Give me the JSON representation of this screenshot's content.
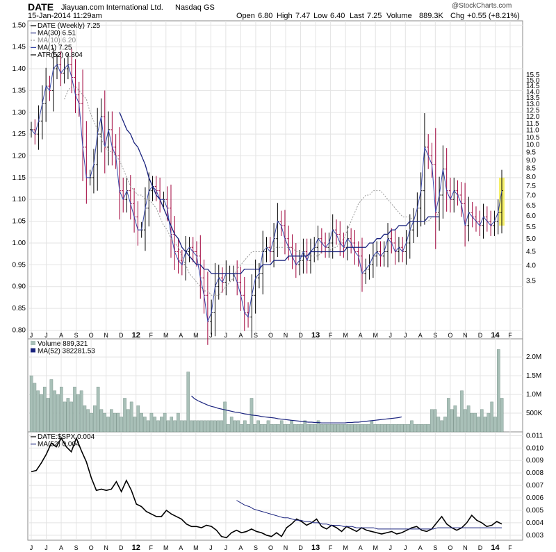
{
  "header": {
    "symbol": "DATE",
    "company": "Jiayuan.com International Ltd.",
    "exchange": "Nasdaq GS",
    "datetime": "15-Jan-2014 11:29am",
    "open_label": "Open",
    "open": "6.80",
    "high_label": "High",
    "high": "7.47",
    "low_label": "Low",
    "low": "6.40",
    "last_label": "Last",
    "last": "7.25",
    "volume_label": "Volume",
    "volume": "889.3K",
    "chg_label": "Chg",
    "chg": "+0.55 (+8.21%)",
    "watermark": "@StockCharts.com"
  },
  "colors": {
    "up_bar": "#000000",
    "down_bar": "#a0003a",
    "ma30": "#1a237e",
    "ma10": "#999999",
    "volume_bar": "#a9c0b8",
    "volume_edge": "#6e8a80",
    "highlight": "#f5ef6a",
    "grid": "#e3e3e3"
  },
  "x_axis_labels": [
    "J",
    "J",
    "A",
    "S",
    "O",
    "N",
    "D",
    "12",
    "F",
    "M",
    "A",
    "M",
    "J",
    "J",
    "A",
    "S",
    "O",
    "N",
    "D",
    "13",
    "F",
    "M",
    "A",
    "M",
    "J",
    "J",
    "A",
    "S",
    "O",
    "N",
    "D",
    "14",
    "F"
  ],
  "chart_data": [
    {
      "type": "ohlc",
      "id": "price",
      "legend": [
        "DATE (Weekly) 7.25",
        "MA(30) 6.51",
        "MA(10) 6.20",
        "MA(1) 7.25",
        "ATR(52) 0.804"
      ],
      "left_axis": {
        "min": 0.78,
        "max": 1.51,
        "ticks": [
          "0.80",
          "0.85",
          "0.90",
          "0.95",
          "1.00",
          "1.05",
          "1.10",
          "1.15",
          "1.20",
          "1.25",
          "1.30",
          "1.35",
          "1.40",
          "1.45",
          "1.50"
        ]
      },
      "right_axis": {
        "scale": "log",
        "ticks": [
          "3.5",
          "4.0",
          "4.5",
          "5.0",
          "5.5",
          "6.0",
          "6.5",
          "7.0",
          "7.5",
          "8.0",
          "8.5",
          "9.0",
          "9.5",
          "10.0",
          "10.5",
          "11.0",
          "11.5",
          "12.0",
          "12.5",
          "13.0",
          "13.5",
          "14.0",
          "14.5",
          "15.0",
          "15.5"
        ]
      },
      "close": [
        1.26,
        1.25,
        1.28,
        1.32,
        1.36,
        1.35,
        1.4,
        1.41,
        1.39,
        1.4,
        1.41,
        1.38,
        1.34,
        1.32,
        1.22,
        1.15,
        1.15,
        1.18,
        1.25,
        1.29,
        1.22,
        1.26,
        1.22,
        1.2,
        1.12,
        1.1,
        1.12,
        1.09,
        1.06,
        1.03,
        1.03,
        1.08,
        1.12,
        1.13,
        1.12,
        1.1,
        1.1,
        1.08,
        1.02,
        0.98,
        0.96,
        0.95,
        0.98,
        0.99,
        0.98,
        0.97,
        0.92,
        0.88,
        0.82,
        0.84,
        0.9,
        0.92,
        0.91,
        0.93,
        0.93,
        0.93,
        0.91,
        0.88,
        0.84,
        0.83,
        0.88,
        0.92,
        0.93,
        0.98,
        0.99,
        0.98,
        1.01,
        1.05,
        1.04,
        1.01,
        0.99,
        0.97,
        0.95,
        0.96,
        0.98,
        0.96,
        0.98,
        0.99,
        1.01,
        1.0,
        0.99,
        1.0,
        1.03,
        1.02,
        1.0,
        0.99,
        1.01,
        1.0,
        0.98,
        0.97,
        0.93,
        0.94,
        0.95,
        0.97,
        0.98,
        0.97,
        0.98,
        1.01,
        1.0,
        0.98,
        0.99,
        0.98,
        1.0,
        1.03,
        1.05,
        1.08,
        1.12,
        1.22,
        1.2,
        1.18,
        1.07,
        1.11,
        1.17,
        1.12,
        1.1,
        1.12,
        1.11,
        1.09,
        1.04,
        1.07,
        1.06,
        1.05,
        1.04,
        1.06,
        1.05,
        1.04,
        1.05,
        1.07,
        1.12
      ],
      "ma30_start_week": 24,
      "ma30": [
        1.3,
        1.28,
        1.26,
        1.25,
        1.23,
        1.22,
        1.2,
        1.18,
        1.15,
        1.13,
        1.11,
        1.1,
        1.08,
        1.06,
        1.04,
        1.02,
        1.01,
        0.99,
        0.98,
        0.97,
        0.96,
        0.95,
        0.95,
        0.94,
        0.94,
        0.93,
        0.93,
        0.93,
        0.93,
        0.93,
        0.93,
        0.93,
        0.93,
        0.93,
        0.94,
        0.94,
        0.94,
        0.94,
        0.94,
        0.95,
        0.95,
        0.95,
        0.96,
        0.96,
        0.96,
        0.96,
        0.97,
        0.97,
        0.97,
        0.97,
        0.97,
        0.97,
        0.98,
        0.98,
        0.98,
        0.98,
        0.98,
        0.98,
        0.98,
        0.98,
        0.98,
        0.98,
        0.99,
        0.99,
        0.99,
        0.99,
        0.99,
        0.99,
        1.0,
        1.0,
        1.01,
        1.01,
        1.02,
        1.02,
        1.03,
        1.03,
        1.04,
        1.04,
        1.04,
        1.05,
        1.05,
        1.05,
        1.05,
        1.05,
        1.06,
        1.06,
        1.06,
        1.06
      ],
      "ma10_start_week": 9,
      "ma10": [
        1.33,
        1.35,
        1.36,
        1.36,
        1.35,
        1.34,
        1.33,
        1.3,
        1.28,
        1.26,
        1.24,
        1.22,
        1.21,
        1.21,
        1.2,
        1.19,
        1.17,
        1.15,
        1.13,
        1.12,
        1.11,
        1.11,
        1.1,
        1.1,
        1.09,
        1.08,
        1.06,
        1.04,
        1.03,
        1.01,
        1.0,
        0.99,
        0.97,
        0.95,
        0.93,
        0.92,
        0.91,
        0.9,
        0.89,
        0.89,
        0.88,
        0.88,
        0.88,
        0.89,
        0.9,
        0.91,
        0.92,
        0.94,
        0.95,
        0.96,
        0.97,
        0.98,
        0.98,
        0.98,
        0.98,
        0.99,
        0.99,
        0.99,
        0.99,
        0.99,
        0.99,
        0.99,
        0.99,
        0.98,
        0.98,
        0.98,
        0.97,
        0.97,
        0.97,
        0.97,
        0.98,
        0.98,
        0.98,
        0.99,
        0.99,
        1.0,
        1.01,
        1.03,
        1.05,
        1.07,
        1.09,
        1.1,
        1.11,
        1.11,
        1.12,
        1.12,
        1.12,
        1.11,
        1.1,
        1.09,
        1.08,
        1.07,
        1.06,
        1.06,
        1.06,
        1.05,
        1.05,
        1.05,
        1.05,
        1.05,
        1.06,
        1.06,
        1.07
      ]
    },
    {
      "type": "bar",
      "id": "volume",
      "legend": [
        "Volume 889,321",
        "MA(52) 382281.53"
      ],
      "axis_ticks": [
        "500K",
        "1.0M",
        "1.5M",
        "2.0M"
      ],
      "y_max": 2.3,
      "values": [
        1.5,
        1.3,
        1.1,
        1.0,
        1.2,
        0.9,
        1.4,
        1.1,
        1.0,
        1.2,
        0.8,
        0.9,
        0.8,
        1.2,
        1.0,
        1.1,
        0.7,
        0.6,
        0.5,
        0.7,
        1.2,
        0.6,
        0.5,
        0.4,
        0.6,
        0.5,
        0.5,
        0.4,
        0.9,
        0.6,
        0.8,
        0.4,
        0.7,
        0.5,
        0.4,
        0.3,
        0.5,
        0.4,
        0.3,
        0.4,
        0.5,
        0.3,
        0.4,
        0.3,
        0.5,
        0.3,
        0.3,
        1.6,
        0.3,
        0.3,
        0.3,
        0.3,
        0.3,
        0.3,
        0.3,
        0.3,
        0.3,
        0.3,
        0.8,
        0.2,
        0.4,
        0.3,
        0.3,
        0.2,
        0.3,
        0.2,
        0.9,
        0.2,
        0.3,
        0.2,
        0.2,
        0.3,
        0.2,
        0.2,
        0.2,
        0.3,
        0.2,
        0.2,
        0.3,
        0.2,
        0.2,
        0.2,
        0.3,
        0.2,
        0.2,
        0.2,
        0.3,
        0.2,
        0.2,
        0.2,
        0.2,
        0.2,
        0.2,
        0.2,
        0.2,
        0.2,
        0.2,
        0.2,
        0.2,
        0.2,
        0.2,
        0.2,
        0.3,
        0.2,
        0.2,
        0.2,
        0.2,
        0.2,
        0.2,
        0.2,
        0.2,
        0.2,
        0.2,
        0.2,
        0.3,
        0.2,
        0.2,
        0.2,
        0.2,
        0.2,
        0.6,
        0.6,
        0.4,
        0.3,
        0.4,
        0.9,
        0.6,
        0.7,
        0.4,
        1.1,
        0.6,
        0.7,
        0.5,
        0.5,
        0.4,
        0.6,
        0.4,
        0.5,
        0.8,
        0.4,
        2.2,
        0.9
      ],
      "ma52_start_week": 48,
      "ma52": [
        0.96,
        0.88,
        0.83,
        0.79,
        0.75,
        0.71,
        0.68,
        0.66,
        0.63,
        0.61,
        0.59,
        0.57,
        0.55,
        0.53,
        0.52,
        0.5,
        0.48,
        0.47,
        0.45,
        0.44,
        0.43,
        0.41,
        0.4,
        0.39,
        0.38,
        0.37,
        0.35,
        0.34,
        0.33,
        0.32,
        0.31,
        0.3,
        0.29,
        0.28,
        0.27,
        0.26,
        0.26,
        0.25,
        0.25,
        0.24,
        0.24,
        0.24,
        0.24,
        0.24,
        0.24,
        0.24,
        0.24,
        0.25,
        0.25,
        0.26,
        0.26,
        0.27,
        0.28,
        0.29,
        0.3,
        0.31,
        0.32,
        0.33,
        0.34,
        0.35,
        0.36,
        0.37,
        0.38,
        0.4
      ]
    },
    {
      "type": "line",
      "id": "relative",
      "legend": [
        "DATE:$SPX 0.004",
        "MA(52) 0.004"
      ],
      "axis_ticks": [
        "0.003",
        "0.004",
        "0.005",
        "0.006",
        "0.007",
        "0.008",
        "0.009",
        "0.010",
        "0.011"
      ],
      "y_range": [
        0.0026,
        0.0113
      ],
      "values": [
        0.0081,
        0.0082,
        0.0088,
        0.0095,
        0.0104,
        0.0101,
        0.0108,
        0.0101,
        0.0097,
        0.0108,
        0.0098,
        0.0089,
        0.0076,
        0.0066,
        0.0067,
        0.0066,
        0.0067,
        0.0073,
        0.0065,
        0.0074,
        0.0066,
        0.0055,
        0.0053,
        0.0049,
        0.0047,
        0.0045,
        0.0045,
        0.005,
        0.0047,
        0.0045,
        0.0043,
        0.0039,
        0.0037,
        0.0037,
        0.0036,
        0.0038,
        0.0037,
        0.0034,
        0.0029,
        0.0028,
        0.0032,
        0.0034,
        0.0032,
        0.0033,
        0.0035,
        0.0033,
        0.0032,
        0.003,
        0.0029,
        0.0032,
        0.0029,
        0.0036,
        0.0039,
        0.0043,
        0.0041,
        0.0038,
        0.004,
        0.0043,
        0.0037,
        0.0035,
        0.0038,
        0.0036,
        0.0033,
        0.0037,
        0.0035,
        0.0033,
        0.0036,
        0.0034,
        0.0033,
        0.0032,
        0.0031,
        0.0032,
        0.0033,
        0.0031,
        0.0032,
        0.0034,
        0.0036,
        0.0037,
        0.0034,
        0.0033,
        0.0035,
        0.004,
        0.0045,
        0.0039,
        0.0036,
        0.0034,
        0.0036,
        0.004,
        0.0046,
        0.0042,
        0.004,
        0.0037,
        0.0038,
        0.0041,
        0.0039
      ],
      "ma52_start_week": 48,
      "ma52": [
        0.0058,
        0.0056,
        0.0054,
        0.0053,
        0.0051,
        0.005,
        0.0049,
        0.0048,
        0.0047,
        0.0046,
        0.0045,
        0.0044,
        0.0044,
        0.0043,
        0.0042,
        0.0042,
        0.0041,
        0.0041,
        0.004,
        0.004,
        0.0039,
        0.0039,
        0.0038,
        0.0038,
        0.0038,
        0.0037,
        0.0037,
        0.0037,
        0.0036,
        0.0036,
        0.0036,
        0.0036,
        0.0036,
        0.0035,
        0.0035,
        0.0035,
        0.0035,
        0.0035,
        0.0035,
        0.0035,
        0.0035,
        0.0035,
        0.0035,
        0.0035,
        0.0035,
        0.0035,
        0.0035,
        0.0036,
        0.0036,
        0.0036,
        0.0036,
        0.0036,
        0.0036,
        0.0036,
        0.0036,
        0.0036,
        0.0036,
        0.0036,
        0.0036,
        0.0036,
        0.0036,
        0.0036,
        0.0036
      ]
    }
  ]
}
